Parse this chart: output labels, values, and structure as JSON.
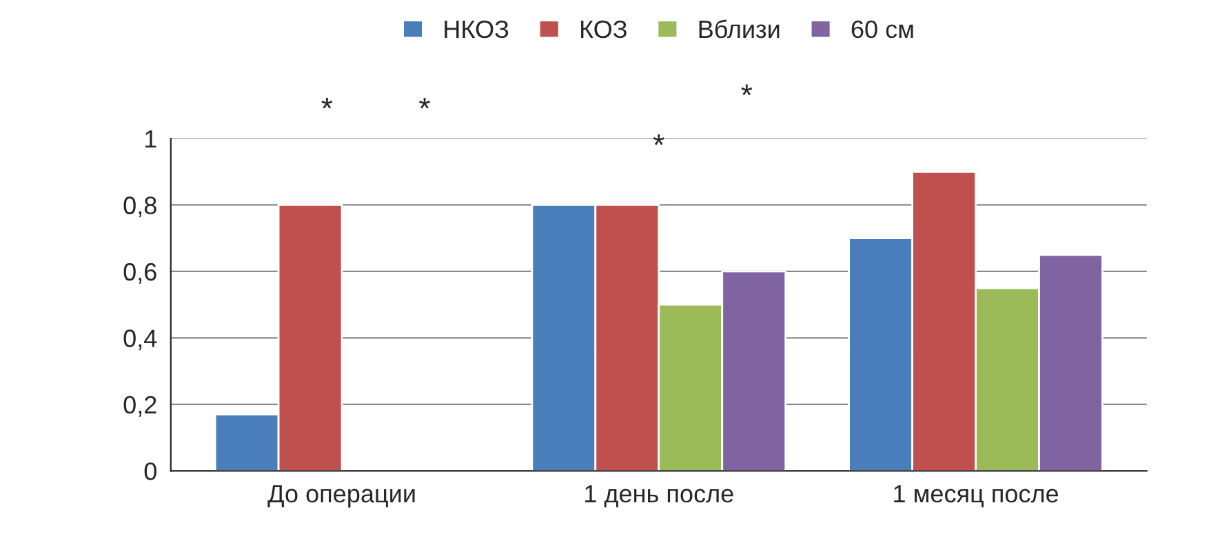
{
  "chart_data": {
    "type": "bar",
    "categories": [
      "До операции",
      "1 день после",
      "1 месяц после"
    ],
    "series": [
      {
        "name": "НКОЗ",
        "color": "#4a7ebb",
        "values": [
          0.17,
          0.8,
          0.7
        ]
      },
      {
        "name": "КОЗ",
        "color": "#c0504d",
        "values": [
          0.8,
          0.8,
          0.9
        ]
      },
      {
        "name": "Вблизи",
        "color": "#9bbb59",
        "values": [
          null,
          0.5,
          0.55
        ]
      },
      {
        "name": "60 см",
        "color": "#8064a2",
        "values": [
          null,
          0.6,
          0.65
        ]
      }
    ],
    "ylim": [
      0,
      1
    ],
    "yticks": [
      0,
      {
        "value": 0.2,
        "label": "0,2"
      },
      {
        "value": 0.4,
        "label": "0,4"
      },
      {
        "value": 0.6,
        "label": "0,6"
      },
      {
        "value": 0.8,
        "label": "0,8"
      },
      1
    ],
    "grid": "y",
    "legend": "top",
    "annotations": [
      "*",
      "*",
      "*",
      "*"
    ]
  }
}
